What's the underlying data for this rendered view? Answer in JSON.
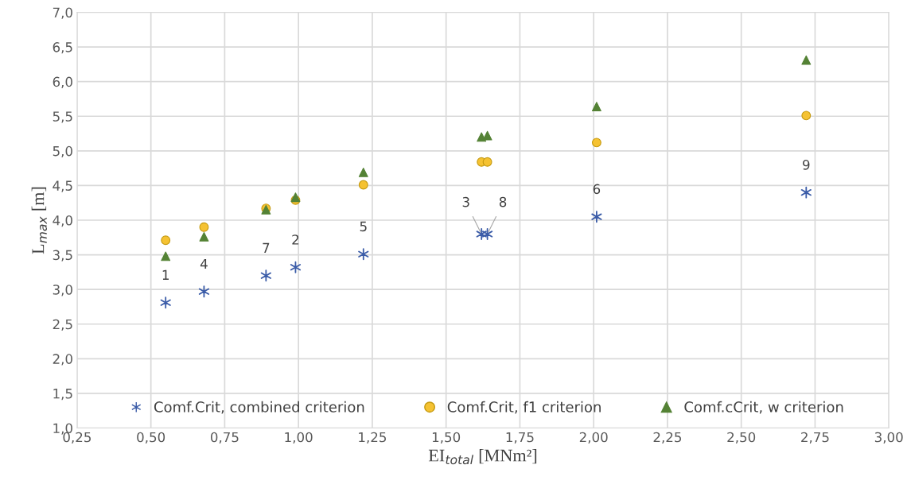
{
  "chart_data": {
    "type": "scatter",
    "xlabel": "EI$_{total}$ [MNm²]",
    "ylabel": "L$_{max}$ [m]",
    "xlim": [
      0.25,
      3.0
    ],
    "ylim": [
      1.0,
      7.0
    ],
    "xticks": [
      {
        "value": 0.25,
        "label": "0,25"
      },
      {
        "value": 0.5,
        "label": "0,50"
      },
      {
        "value": 0.75,
        "label": "0,75"
      },
      {
        "value": 1.0,
        "label": "1,00"
      },
      {
        "value": 1.25,
        "label": "1,25"
      },
      {
        "value": 1.5,
        "label": "1,50"
      },
      {
        "value": 1.75,
        "label": "1,75"
      },
      {
        "value": 2.0,
        "label": "2,00"
      },
      {
        "value": 2.25,
        "label": "2,25"
      },
      {
        "value": 2.5,
        "label": "2,50"
      },
      {
        "value": 2.75,
        "label": "2,75"
      },
      {
        "value": 3.0,
        "label": "3,00"
      }
    ],
    "yticks": [
      {
        "value": 1.0,
        "label": "1,0"
      },
      {
        "value": 1.5,
        "label": "1,5"
      },
      {
        "value": 2.0,
        "label": "2,0"
      },
      {
        "value": 2.5,
        "label": "2,5"
      },
      {
        "value": 3.0,
        "label": "3,0"
      },
      {
        "value": 3.5,
        "label": "3,5"
      },
      {
        "value": 4.0,
        "label": "4,0"
      },
      {
        "value": 4.5,
        "label": "4,5"
      },
      {
        "value": 5.0,
        "label": "5,0"
      },
      {
        "value": 5.5,
        "label": "5,5"
      },
      {
        "value": 6.0,
        "label": "6,0"
      },
      {
        "value": 6.5,
        "label": "6,5"
      },
      {
        "value": 7.0,
        "label": "7,0"
      }
    ],
    "grid": true,
    "legend": "bottom",
    "x": [
      0.55,
      0.68,
      0.89,
      0.99,
      1.22,
      1.62,
      1.64,
      2.01,
      2.72
    ],
    "series": [
      {
        "name": "Comf.Crit, combined criterion",
        "color": "#3b5ca8",
        "marker": "cross",
        "values": [
          2.81,
          2.97,
          3.2,
          3.32,
          3.51,
          3.8,
          3.8,
          4.05,
          4.4
        ]
      },
      {
        "name": "Comf.Crit, f1 criterion",
        "color": "#f5c232",
        "marker": "circle",
        "values": [
          3.71,
          3.9,
          4.17,
          4.29,
          4.51,
          4.84,
          4.84,
          5.12,
          5.51
        ]
      },
      {
        "name": "Comf.cCrit, w criterion",
        "color": "#548235",
        "marker": "triangle",
        "values": [
          3.48,
          3.76,
          4.15,
          4.33,
          4.69,
          5.2,
          5.22,
          5.64,
          6.31
        ]
      }
    ],
    "annotations": [
      {
        "text": "1",
        "x": 0.55,
        "y": 2.81
      },
      {
        "text": "4",
        "x": 0.68,
        "y": 2.97
      },
      {
        "text": "7",
        "x": 0.89,
        "y": 3.2
      },
      {
        "text": "2",
        "x": 0.99,
        "y": 3.32
      },
      {
        "text": "5",
        "x": 1.22,
        "y": 3.51
      },
      {
        "text": "3",
        "x": 1.62,
        "y": 3.8
      },
      {
        "text": "8",
        "x": 1.64,
        "y": 3.8
      },
      {
        "text": "6",
        "x": 2.01,
        "y": 4.05
      },
      {
        "text": "9",
        "x": 2.72,
        "y": 4.4
      }
    ]
  }
}
